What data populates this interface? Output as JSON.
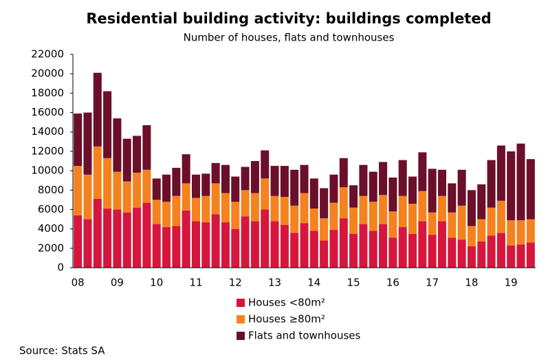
{
  "chart_data": {
    "type": "stacked_bar",
    "title": "Residential building activity: buildings completed",
    "subtitle": "Number of houses, flats and townhouses",
    "source": "Source: Stats SA",
    "categories": [
      "08",
      null,
      null,
      null,
      "09",
      null,
      null,
      null,
      "10",
      null,
      null,
      null,
      "11",
      null,
      null,
      null,
      "12",
      null,
      null,
      null,
      "13",
      null,
      null,
      null,
      "14",
      null,
      null,
      null,
      "15",
      null,
      null,
      null,
      "16",
      null,
      null,
      null,
      "17",
      null,
      null,
      null,
      "18",
      null,
      null,
      null,
      "19",
      null,
      null
    ],
    "series": [
      {
        "name": "Houses <80m²",
        "color": "#d7163d",
        "values": [
          5400,
          5000,
          7100,
          6100,
          6000,
          5700,
          6200,
          6700,
          4500,
          4200,
          4300,
          5900,
          4800,
          4700,
          5500,
          4700,
          4000,
          5300,
          4800,
          6000,
          4800,
          4400,
          3600,
          4600,
          3800,
          2800,
          3900,
          5100,
          3500,
          4500,
          3800,
          4500,
          3100,
          4200,
          3500,
          4800,
          3400,
          4800,
          3100,
          2900,
          2200,
          2700,
          3300,
          3600,
          2300,
          2400,
          2600
        ]
      },
      {
        "name": "Houses ≥80m²",
        "color": "#f5821f",
        "values": [
          5100,
          4600,
          5400,
          5200,
          3900,
          3200,
          3600,
          3400,
          2500,
          2600,
          3100,
          2800,
          2400,
          2700,
          3200,
          3000,
          2800,
          2700,
          2900,
          3200,
          2600,
          2900,
          2800,
          3100,
          2300,
          2300,
          2800,
          3200,
          2700,
          2900,
          3000,
          3000,
          2700,
          3200,
          3100,
          3100,
          2300,
          2600,
          2600,
          3500,
          2100,
          2300,
          2900,
          3300,
          2600,
          2500,
          2400
        ]
      },
      {
        "name": "Flats and townhouses",
        "color": "#6b0f2b",
        "values": [
          5400,
          6400,
          7600,
          6900,
          5500,
          4400,
          3800,
          4600,
          2200,
          2800,
          2900,
          3000,
          2400,
          2300,
          2100,
          2900,
          2600,
          2400,
          3300,
          2900,
          3100,
          3200,
          3700,
          2900,
          3100,
          3100,
          2900,
          3000,
          2300,
          3200,
          3100,
          3400,
          3500,
          3700,
          2800,
          4000,
          4500,
          2700,
          3000,
          3700,
          3700,
          3600,
          4900,
          5700,
          7100,
          7900,
          6200
        ]
      }
    ],
    "ylim": [
      0,
      22000
    ],
    "yticks": [
      0,
      2000,
      4000,
      6000,
      8000,
      10000,
      12000,
      14000,
      16000,
      18000,
      20000,
      22000
    ],
    "grid": false
  }
}
